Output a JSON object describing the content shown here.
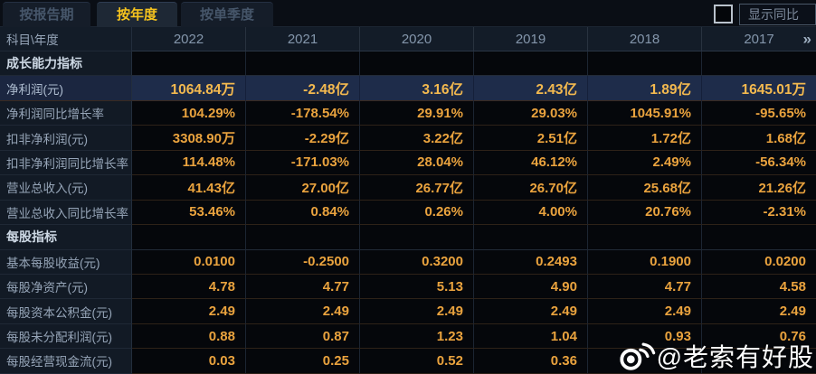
{
  "tabs": {
    "report_period": "按报告期",
    "annual": "按年度",
    "quarterly": "按单季度"
  },
  "controls": {
    "show_yoy_label": "显示同比"
  },
  "table": {
    "corner_header": "科目\\年度",
    "years": [
      "2022",
      "2021",
      "2020",
      "2019",
      "2018",
      "2017"
    ],
    "more_years_icon": "»",
    "rows": [
      {
        "label": "成长能力指标",
        "type": "section",
        "values": [
          "",
          "",
          "",
          "",
          "",
          ""
        ]
      },
      {
        "label": "净利润(元)",
        "type": "highlight",
        "values": [
          "1064.84万",
          "-2.48亿",
          "3.16亿",
          "2.43亿",
          "1.89亿",
          "1645.01万"
        ]
      },
      {
        "label": "净利润同比增长率",
        "type": "normal",
        "values": [
          "104.29%",
          "-178.54%",
          "29.91%",
          "29.03%",
          "1045.91%",
          "-95.65%"
        ]
      },
      {
        "label": "扣非净利润(元)",
        "type": "normal",
        "values": [
          "3308.90万",
          "-2.29亿",
          "3.22亿",
          "2.51亿",
          "1.72亿",
          "1.68亿"
        ]
      },
      {
        "label": "扣非净利润同比增长率",
        "type": "normal",
        "values": [
          "114.48%",
          "-171.03%",
          "28.04%",
          "46.12%",
          "2.49%",
          "-56.34%"
        ]
      },
      {
        "label": "营业总收入(元)",
        "type": "normal",
        "values": [
          "41.43亿",
          "27.00亿",
          "26.77亿",
          "26.70亿",
          "25.68亿",
          "21.26亿"
        ]
      },
      {
        "label": "营业总收入同比增长率",
        "type": "normal",
        "values": [
          "53.46%",
          "0.84%",
          "0.26%",
          "4.00%",
          "20.76%",
          "-2.31%"
        ]
      },
      {
        "label": "每股指标",
        "type": "section",
        "values": [
          "",
          "",
          "",
          "",
          "",
          ""
        ]
      },
      {
        "label": "基本每股收益(元)",
        "type": "normal",
        "values": [
          "0.0100",
          "-0.2500",
          "0.3200",
          "0.2493",
          "0.1900",
          "0.0200"
        ]
      },
      {
        "label": "每股净资产(元)",
        "type": "normal",
        "values": [
          "4.78",
          "4.77",
          "5.13",
          "4.90",
          "4.77",
          "4.58"
        ]
      },
      {
        "label": "每股资本公积金(元)",
        "type": "normal",
        "values": [
          "2.49",
          "2.49",
          "2.49",
          "2.49",
          "2.49",
          "2.49"
        ]
      },
      {
        "label": "每股未分配利润(元)",
        "type": "normal",
        "values": [
          "0.88",
          "0.87",
          "1.23",
          "1.04",
          "0.93",
          "0.76"
        ]
      },
      {
        "label": "每股经营现金流(元)",
        "type": "normal",
        "values": [
          "0.03",
          "0.25",
          "0.52",
          "0.36",
          "",
          ""
        ]
      }
    ]
  },
  "watermark": {
    "text": "@老索有好股"
  },
  "colors": {
    "accent_gold_value": "#eaa33e",
    "active_tab_text": "#f5c31e",
    "highlight_row_bg": "#1e2c4a",
    "label_column_bg": "#121a25",
    "header_row_bg": "#131c28",
    "page_bg": "#070b11"
  }
}
